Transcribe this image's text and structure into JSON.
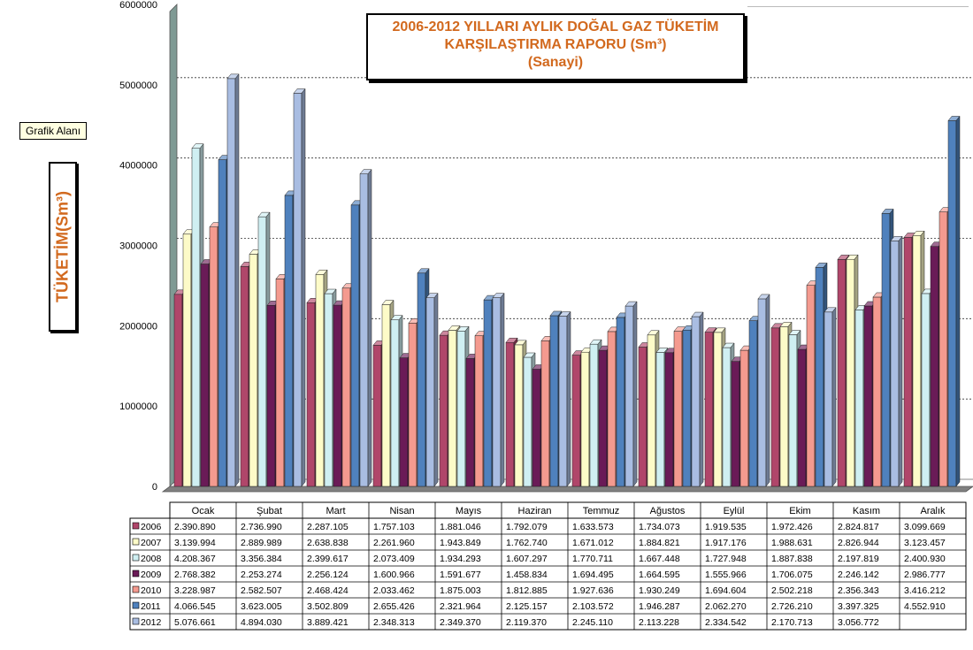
{
  "chart_data": {
    "type": "bar",
    "title_lines": [
      "2006-2012 YILLARI AYLIK DOĞAL  GAZ TÜKETİM",
      "KARŞILAŞTIRMA RAPORU (Sm³)",
      "(Sanayi)"
    ],
    "ylabel": "TÜKETİM(Sm³)",
    "tooltip": "Grafik Alanı",
    "ylim": [
      0,
      6000000
    ],
    "yticks": [
      "0",
      "1000000",
      "2000000",
      "3000000",
      "4000000",
      "5000000",
      "6000000"
    ],
    "grid": true,
    "legend": "data-table",
    "categories": [
      "Ocak",
      "Şubat",
      "Mart",
      "Nisan",
      "Mayıs",
      "Haziran",
      "Temmuz",
      "Ağustos",
      "Eylül",
      "Ekim",
      "Kasım",
      "Aralık"
    ],
    "series": [
      {
        "name": "2006",
        "color": "#b0466a",
        "values": [
          2390890,
          2736990,
          2287105,
          1757103,
          1881046,
          1792079,
          1633573,
          1734073,
          1919535,
          1972426,
          2824817,
          3099669
        ],
        "labels": [
          "2.390.890",
          "2.736.990",
          "2.287.105",
          "1.757.103",
          "1.881.046",
          "1.792.079",
          "1.633.573",
          "1.734.073",
          "1.919.535",
          "1.972.426",
          "2.824.817",
          "3.099.669"
        ]
      },
      {
        "name": "2007",
        "color": "#fdfbc8",
        "values": [
          3139994,
          2889989,
          2638838,
          2261960,
          1943849,
          1762740,
          1671012,
          1884821,
          1917176,
          1988631,
          2826944,
          3123457
        ],
        "labels": [
          "3.139.994",
          "2.889.989",
          "2.638.838",
          "2.261.960",
          "1.943.849",
          "1.762.740",
          "1.671.012",
          "1.884.821",
          "1.917.176",
          "1.988.631",
          "2.826.944",
          "3.123.457"
        ]
      },
      {
        "name": "2008",
        "color": "#cfeff2",
        "values": [
          4208367,
          3356384,
          2399617,
          2073409,
          1934293,
          1607297,
          1770711,
          1667448,
          1727948,
          1887838,
          2197819,
          2400930
        ],
        "labels": [
          "4.208.367",
          "3.356.384",
          "2.399.617",
          "2.073.409",
          "1.934.293",
          "1.607.297",
          "1.770.711",
          "1.667.448",
          "1.727.948",
          "1.887.838",
          "2.197.819",
          "2.400.930"
        ]
      },
      {
        "name": "2009",
        "color": "#6a1b57",
        "values": [
          2768382,
          2253274,
          2256124,
          1600966,
          1591677,
          1458834,
          1694495,
          1664595,
          1555966,
          1706075,
          2246142,
          2986777
        ],
        "labels": [
          "2.768.382",
          "2.253.274",
          "2.256.124",
          "1.600.966",
          "1.591.677",
          "1.458.834",
          "1.694.495",
          "1.664.595",
          "1.555.966",
          "1.706.075",
          "2.246.142",
          "2.986.777"
        ]
      },
      {
        "name": "2010",
        "color": "#f49a8f",
        "values": [
          3228987,
          2582507,
          2468424,
          2033462,
          1875003,
          1812885,
          1927636,
          1930249,
          1694604,
          2502218,
          2356343,
          3416212
        ],
        "labels": [
          "3.228.987",
          "2.582.507",
          "2.468.424",
          "2.033.462",
          "1.875.003",
          "1.812.885",
          "1.927.636",
          "1.930.249",
          "1.694.604",
          "2.502.218",
          "2.356.343",
          "3.416.212"
        ]
      },
      {
        "name": "2011",
        "color": "#4f81bd",
        "values": [
          4066545,
          3623005,
          3502809,
          2655426,
          2321964,
          2125157,
          2103572,
          1946287,
          2062270,
          2726210,
          3397325,
          4552910
        ],
        "labels": [
          "4.066.545",
          "3.623.005",
          "3.502.809",
          "2.655.426",
          "2.321.964",
          "2.125.157",
          "2.103.572",
          "1.946.287",
          "2.062.270",
          "2.726.210",
          "3.397.325",
          "4.552.910"
        ]
      },
      {
        "name": "2012",
        "color": "#a9bde2",
        "values": [
          5076661,
          4894030,
          3889421,
          2348313,
          2349370,
          2119370,
          2245110,
          2113228,
          2334542,
          2170713,
          3056772,
          null
        ],
        "labels": [
          "5.076.661",
          "4.894.030",
          "3.889.421",
          "2.348.313",
          "2.349.370",
          "2.119.370",
          "2.245.110",
          "2.113.228",
          "2.334.542",
          "2.170.713",
          "3.056.772",
          ""
        ]
      }
    ]
  }
}
